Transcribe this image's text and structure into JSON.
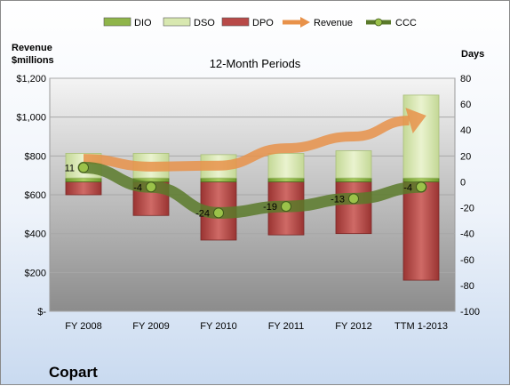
{
  "company": "Copart",
  "chart_data": {
    "type": "bar",
    "title": "12-Month Periods",
    "categories": [
      "FY 2008",
      "FY 2009",
      "FY 2010",
      "FY 2011",
      "FY 2012",
      "TTM 1-2013"
    ],
    "left_axis": {
      "label_line1": "Revenue",
      "label_line2": "$millions",
      "range": [
        0,
        1200
      ],
      "ticks": [
        {
          "value": 0,
          "label": "$-"
        },
        {
          "value": 200,
          "label": "$200"
        },
        {
          "value": 400,
          "label": "$400"
        },
        {
          "value": 600,
          "label": "$600"
        },
        {
          "value": 800,
          "label": "$800"
        },
        {
          "value": 1000,
          "label": "$1,000"
        },
        {
          "value": 1200,
          "label": "$1,200"
        }
      ]
    },
    "right_axis": {
      "label": "Days",
      "range": [
        -100,
        80
      ],
      "ticks": [
        {
          "value": -100,
          "label": "-100"
        },
        {
          "value": -80,
          "label": "-80"
        },
        {
          "value": -60,
          "label": "-60"
        },
        {
          "value": -40,
          "label": "-40"
        },
        {
          "value": -20,
          "label": "-20"
        },
        {
          "value": 0,
          "label": "0"
        },
        {
          "value": 20,
          "label": "20"
        },
        {
          "value": 40,
          "label": "40"
        },
        {
          "value": 60,
          "label": "60"
        },
        {
          "value": 80,
          "label": "80"
        }
      ]
    },
    "legend": {
      "position": "top",
      "items": [
        {
          "name": "DIO",
          "kind": "bar",
          "color": "#8fb54a"
        },
        {
          "name": "DSO",
          "kind": "bar",
          "color": "#d8e8b0"
        },
        {
          "name": "DPO",
          "kind": "bar",
          "color": "#b84a48"
        },
        {
          "name": "Revenue",
          "kind": "arrow",
          "color": "#e8924a"
        },
        {
          "name": "CCC",
          "kind": "line",
          "color": "#5a7a2a"
        }
      ]
    },
    "series": [
      {
        "name": "DIO",
        "axis": "days",
        "values": [
          3,
          3,
          3,
          3,
          3,
          3
        ]
      },
      {
        "name": "DSO",
        "axis": "days",
        "values": [
          19,
          19,
          18,
          19,
          21,
          64
        ]
      },
      {
        "name": "DPO",
        "axis": "days",
        "values": [
          -10,
          -26,
          -45,
          -41,
          -40,
          -76
        ]
      },
      {
        "name": "Revenue",
        "axis": "revenue",
        "values": [
          785,
          745,
          750,
          840,
          900,
          1000
        ]
      },
      {
        "name": "CCC",
        "axis": "days",
        "values": [
          11,
          -4,
          -24,
          -19,
          -13,
          -4
        ]
      }
    ],
    "ccc_labels": [
      "11",
      "-4",
      "-24",
      "-19",
      "-13",
      "-4"
    ],
    "grid": true
  }
}
